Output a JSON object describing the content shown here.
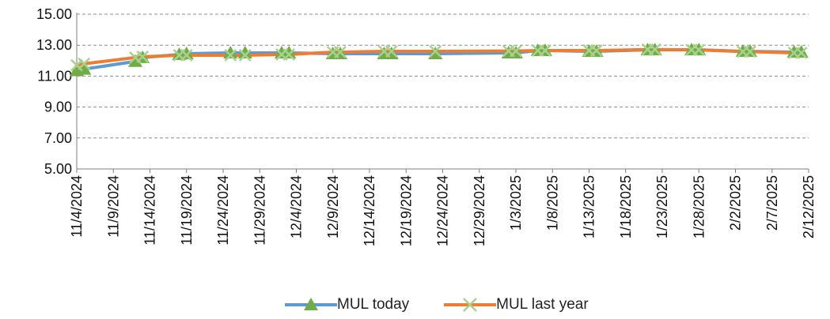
{
  "chart_data": {
    "type": "line",
    "title": "",
    "xlabel": "",
    "ylabel": "",
    "ylim": [
      5,
      15
    ],
    "y_ticks": [
      "5.00",
      "7.00",
      "9.00",
      "11.00",
      "13.00",
      "15.00"
    ],
    "x_range": [
      "11/4/2024",
      "2/12/2025"
    ],
    "x_ticks": [
      "11/4/2024",
      "11/9/2024",
      "11/14/2024",
      "11/19/2024",
      "11/24/2024",
      "11/29/2024",
      "12/4/2024",
      "12/9/2024",
      "12/14/2024",
      "12/19/2024",
      "12/24/2024",
      "12/29/2024",
      "1/3/2025",
      "1/8/2025",
      "1/13/2025",
      "1/18/2025",
      "1/23/2025",
      "1/28/2025",
      "2/2/2025",
      "2/7/2025",
      "2/12/2025"
    ],
    "grid": "horizontal dashed",
    "legend_position": "bottom",
    "series": [
      {
        "name": "MUL today",
        "color": "#5B9BD5",
        "marker_color": "#70AD47",
        "marker": "triangle",
        "x": [
          "11/4/2024",
          "11/5/2024",
          "11/12/2024",
          "11/13/2024",
          "11/18/2024",
          "11/19/2024",
          "11/25/2024",
          "11/27/2024",
          "12/2/2024",
          "12/3/2024",
          "12/9/2024",
          "12/10/2024",
          "12/16/2024",
          "12/17/2024",
          "12/23/2024",
          "1/2/2025",
          "1/3/2025",
          "1/6/2025",
          "1/7/2025",
          "1/13/2025",
          "1/14/2025",
          "1/21/2025",
          "1/22/2025",
          "1/27/2025",
          "1/28/2025",
          "2/3/2025",
          "2/4/2025",
          "2/10/2025",
          "2/11/2025"
        ],
        "y": [
          11.35,
          11.45,
          11.95,
          12.2,
          12.4,
          12.45,
          12.5,
          12.5,
          12.5,
          12.5,
          12.45,
          12.45,
          12.45,
          12.45,
          12.45,
          12.5,
          12.5,
          12.65,
          12.65,
          12.6,
          12.6,
          12.7,
          12.7,
          12.7,
          12.7,
          12.6,
          12.6,
          12.55,
          12.55
        ]
      },
      {
        "name": "MUL last year",
        "color": "#ED7D31",
        "marker_color": "#A9D18E",
        "marker": "x",
        "x": [
          "11/4/2024",
          "11/5/2024",
          "11/12/2024",
          "11/13/2024",
          "11/18/2024",
          "11/19/2024",
          "11/25/2024",
          "11/27/2024",
          "12/2/2024",
          "12/3/2024",
          "12/9/2024",
          "12/10/2024",
          "12/16/2024",
          "12/17/2024",
          "12/23/2024",
          "1/2/2025",
          "1/3/2025",
          "1/6/2025",
          "1/7/2025",
          "1/13/2025",
          "1/14/2025",
          "1/21/2025",
          "1/22/2025",
          "1/27/2025",
          "1/28/2025",
          "2/3/2025",
          "2/4/2025",
          "2/10/2025",
          "2/11/2025"
        ],
        "y": [
          11.7,
          11.8,
          12.2,
          12.25,
          12.35,
          12.35,
          12.35,
          12.35,
          12.4,
          12.4,
          12.55,
          12.55,
          12.6,
          12.6,
          12.6,
          12.62,
          12.62,
          12.65,
          12.65,
          12.65,
          12.65,
          12.72,
          12.72,
          12.7,
          12.7,
          12.58,
          12.58,
          12.5,
          12.5
        ]
      }
    ]
  }
}
